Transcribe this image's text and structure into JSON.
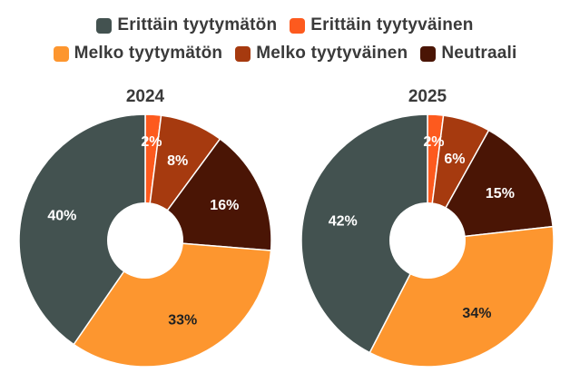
{
  "chart_data": {
    "type": "pie",
    "donut": true,
    "legend_position": "top",
    "categories": [
      "Erittäin tyytymätön",
      "Erittäin tyytyväinen",
      "Melko tyytymätön",
      "Melko tyytyväinen",
      "Neutraali"
    ],
    "colors": {
      "Erittäin tyytymätön": "#435250",
      "Erittäin tyytyväinen": "#fd5a1e",
      "Melko tyytymätön": "#fd962f",
      "Melko tyytyväinen": "#a63a0f",
      "Neutraali": "#4a1505"
    },
    "slice_order": [
      "Erittäin tyytyväinen",
      "Melko tyytyväinen",
      "Neutraali",
      "Melko tyytymätön",
      "Erittäin tyytymätön"
    ],
    "pies": [
      {
        "title": "2024",
        "values": {
          "Erittäin tyytyväinen": 2,
          "Melko tyytyväinen": 8,
          "Neutraali": 16,
          "Melko tyytymätön": 33,
          "Erittäin tyytymätön": 40
        },
        "labels": {
          "Erittäin tyytyväinen": "2%",
          "Melko tyytyväinen": "8%",
          "Neutraali": "16%",
          "Melko tyytymätön": "33%",
          "Erittäin tyytymätön": "40%"
        }
      },
      {
        "title": "2025",
        "values": {
          "Erittäin tyytyväinen": 2,
          "Melko tyytyväinen": 6,
          "Neutraali": 15,
          "Melko tyytymätön": 34,
          "Erittäin tyytymätön": 42
        },
        "labels": {
          "Erittäin tyytyväinen": "2%",
          "Melko tyytyväinen": "6%",
          "Neutraali": "15%",
          "Melko tyytymätön": "34%",
          "Erittäin tyytymätön": "42%"
        }
      }
    ]
  }
}
